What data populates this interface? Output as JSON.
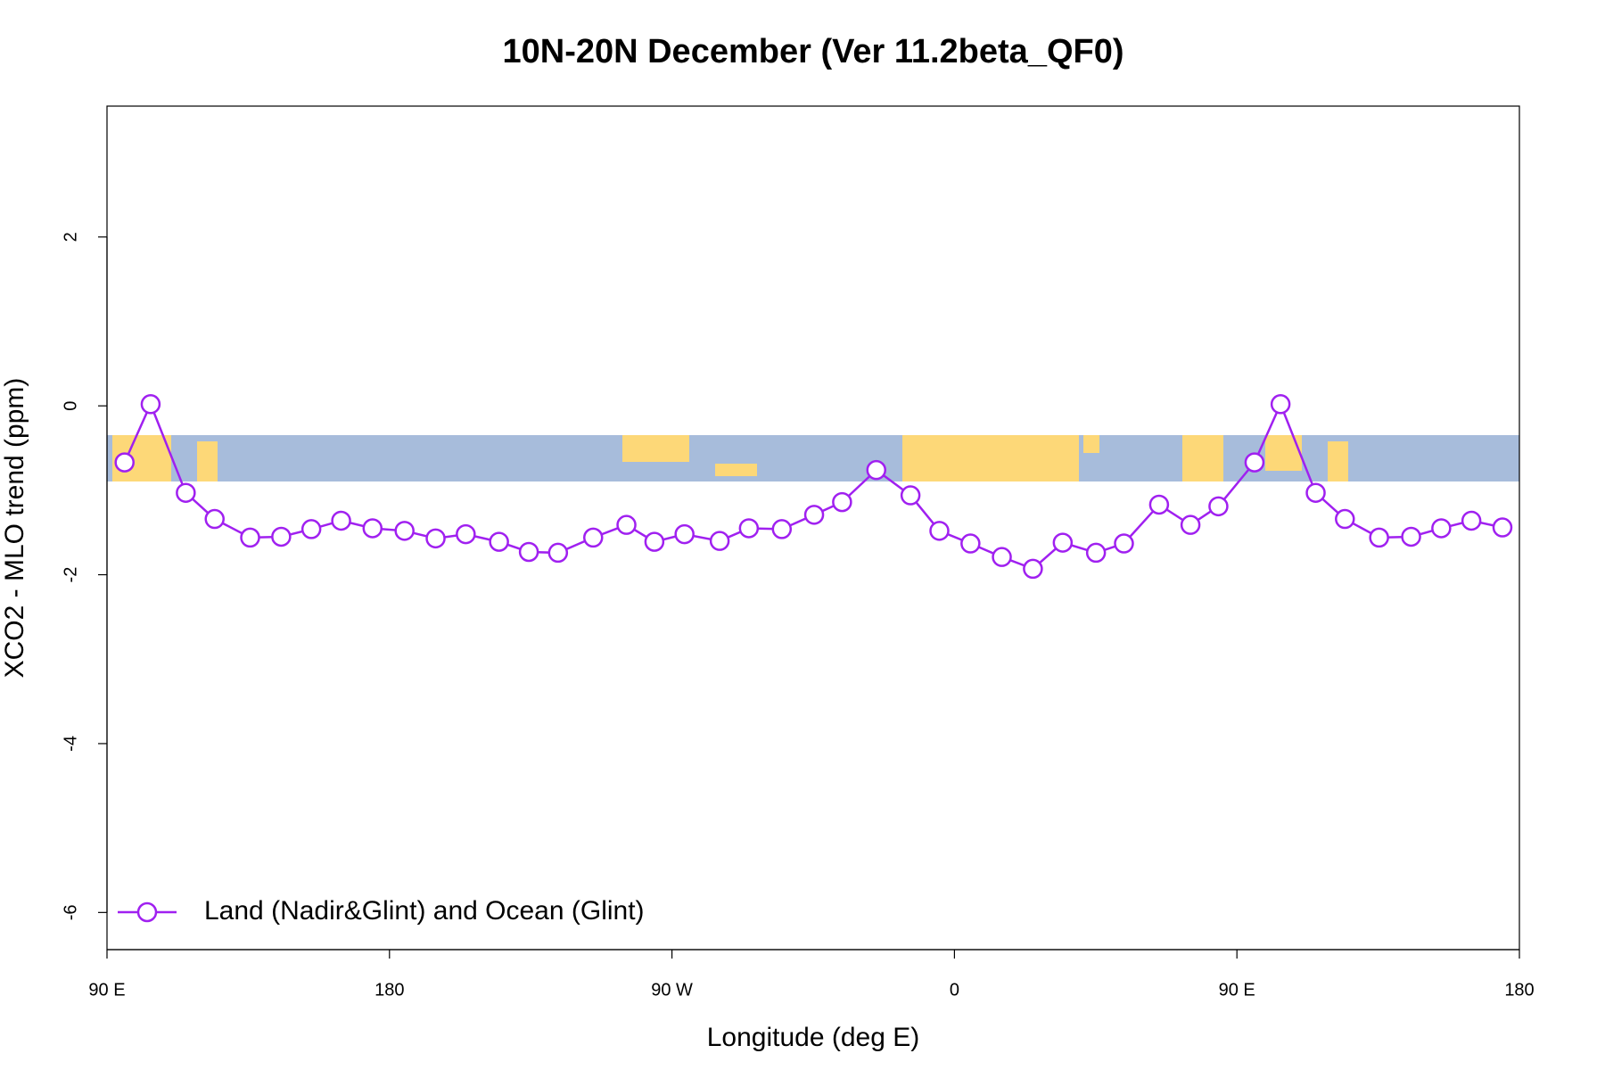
{
  "chart_data": {
    "type": "line",
    "title": "10N-20N December (Ver 11.2beta_QF0)",
    "x_label": "Longitude (deg E)",
    "y_label": "XCO2 - MLO trend (ppm)",
    "xlim": [
      90,
      540
    ],
    "ylim": [
      -6.44,
      3.55
    ],
    "xticks": [
      {
        "value": 90,
        "label": "90 E"
      },
      180,
      {
        "value": 270,
        "label": "90 W"
      },
      {
        "value": 360,
        "label": "0"
      },
      {
        "value": 450,
        "label": "90 E"
      },
      {
        "value": 540,
        "label": "180"
      }
    ],
    "yticks": [
      -6,
      -4,
      -2,
      0,
      2
    ],
    "legend": "bottom-left",
    "grid": false,
    "series": [
      {
        "name": "Land (Nadir&Glint) and Ocean (Glint)",
        "color": "#a020f0",
        "x": [
          95.6,
          103.9,
          115.1,
          124.3,
          135.6,
          145.5,
          155.1,
          164.6,
          174.6,
          184.8,
          194.7,
          204.3,
          214.9,
          224.4,
          233.7,
          244.9,
          255.5,
          264.4,
          274.0,
          285.2,
          294.5,
          305.0,
          315.3,
          324.2,
          335.1,
          346.0,
          355.2,
          365.1,
          375.1,
          385.0,
          394.5,
          405.1,
          414.0,
          425.2,
          435.2,
          444.1,
          455.6,
          463.9,
          475.1,
          484.4,
          495.3,
          505.5,
          515.1,
          524.7,
          534.6
        ],
        "values": [
          -0.67,
          0.02,
          -1.03,
          -1.34,
          -1.56,
          -1.55,
          -1.46,
          -1.36,
          -1.45,
          -1.48,
          -1.57,
          -1.52,
          -1.61,
          -1.73,
          -1.74,
          -1.56,
          -1.41,
          -1.61,
          -1.52,
          -1.6,
          -1.45,
          -1.46,
          -1.29,
          -1.14,
          -0.76,
          -1.06,
          -1.48,
          -1.63,
          -1.79,
          -1.93,
          -1.62,
          -1.74,
          -1.63,
          -1.17,
          -1.41,
          -1.19,
          -0.67,
          0.02,
          -1.03,
          -1.34,
          -1.56,
          -1.55,
          -1.45,
          -1.36,
          -1.44
        ]
      }
    ]
  }
}
